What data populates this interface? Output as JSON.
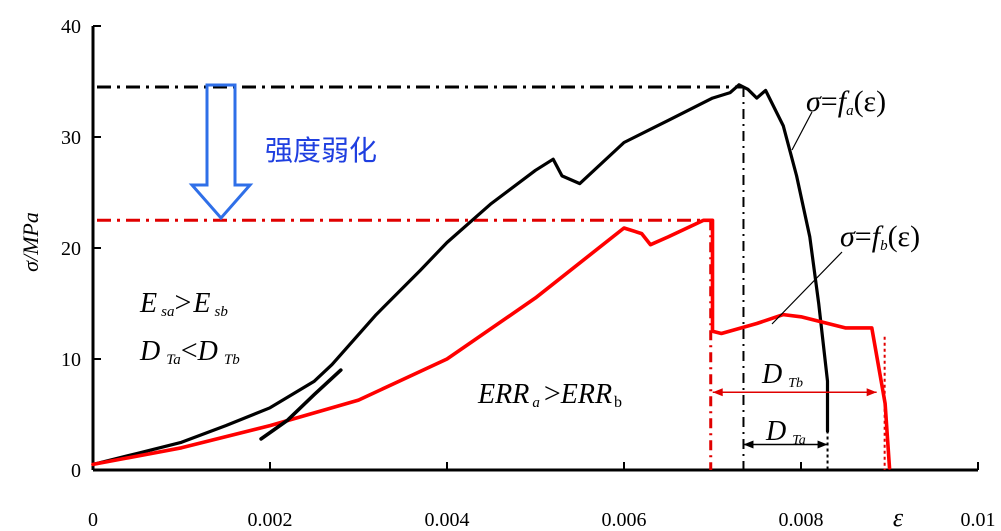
{
  "chart_data": {
    "type": "line",
    "xlabel": "ε",
    "ylabel": "σ/MPa",
    "xlim": [
      0,
      0.01
    ],
    "ylim": [
      0,
      40
    ],
    "x_ticks": [
      "0",
      "0.002",
      "0.004",
      "0.006",
      "0.008",
      "0.01"
    ],
    "y_ticks": [
      "0",
      "10",
      "20",
      "30",
      "40"
    ],
    "colors": {
      "a": "#000000",
      "b": "#ff0000",
      "arrow": "#2f6fe8",
      "text_cn": "#1f3fe0"
    },
    "series": [
      {
        "name": "a",
        "x": [
          0,
          0.0005,
          0.001,
          0.0015,
          0.002,
          0.0025,
          0.0027,
          0.0032,
          0.0037,
          0.004,
          0.0045,
          0.005,
          0.0052,
          0.0053,
          0.0055,
          0.006,
          0.0065,
          0.007,
          0.0072,
          0.0073,
          0.0074,
          0.0075,
          0.0076,
          0.0078,
          0.00795,
          0.0081,
          0.0082,
          0.0083,
          0.0083
        ],
        "y": [
          0.5,
          1.5,
          2.5,
          4.0,
          5.6,
          8.0,
          9.5,
          14.0,
          18.0,
          20.5,
          24.0,
          27.0,
          28.0,
          26.5,
          25.8,
          29.5,
          31.5,
          33.5,
          34.0,
          34.7,
          34.3,
          33.5,
          34.2,
          31.0,
          26.5,
          21.0,
          15.0,
          8.0,
          3.5
        ]
      },
      {
        "name": "b",
        "x": [
          0,
          0.001,
          0.002,
          0.003,
          0.004,
          0.005,
          0.006,
          0.0062,
          0.0063,
          0.0065,
          0.0069,
          0.007,
          0.007,
          0.0071,
          0.0075,
          0.0078,
          0.008,
          0.0085,
          0.0088,
          0.00895,
          0.009
        ],
        "y": [
          0.5,
          2.0,
          4.0,
          6.3,
          10.0,
          15.5,
          21.8,
          21.3,
          20.3,
          21.0,
          22.5,
          22.5,
          12.5,
          12.3,
          13.2,
          14.0,
          13.8,
          12.8,
          12.8,
          6.0,
          0.2
        ]
      },
      {
        "name": "branch",
        "x": [
          0.0019,
          0.0022,
          0.0025,
          0.0028
        ],
        "y": [
          2.8,
          4.5,
          6.8,
          9.0
        ]
      }
    ],
    "reference_lines": {
      "a_peak_stress": 34.5,
      "b_peak_stress": 22.5,
      "a_peak_strain": 0.00735,
      "b_peak_strain": 0.00698,
      "a_end_strain": 0.0083,
      "b_end_strain": 0.0089,
      "D_Tb_level": 7.0,
      "D_Ta_level": 2.3
    },
    "annotations": {
      "curve_a": {
        "sym": "σ",
        "eq": "=",
        "f": "f",
        "sub": "a",
        "arg": "(ε)"
      },
      "curve_b": {
        "sym": "σ",
        "eq": "=",
        "f": "f",
        "sub": "b",
        "arg": "(ε)"
      },
      "strength_weakening": "强度弱化",
      "E_relation": {
        "left": "E",
        "left_sub": "sa",
        "op": ">",
        "right": "E",
        "right_sub": "sb"
      },
      "D_relation": {
        "left": "D",
        "left_sub": "Ta",
        "op": "<",
        "right": "D",
        "right_sub": "Tb"
      },
      "ERR_relation": {
        "left": "ERR",
        "left_sub": "a",
        "op": ">",
        "right": "ERR",
        "right_sub": "b"
      },
      "D_Tb": {
        "main": "D",
        "sub": "Tb"
      },
      "D_Ta": {
        "main": "D",
        "sub": "Ta"
      }
    }
  }
}
